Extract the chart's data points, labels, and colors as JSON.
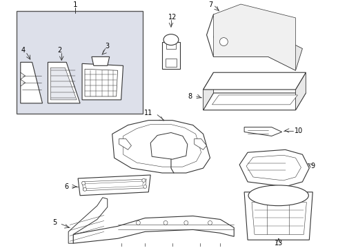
{
  "background_color": "#ffffff",
  "line_color": "#333333",
  "label_color": "#000000",
  "box_bg": "#e8eaf0",
  "figsize": [
    4.9,
    3.6
  ],
  "dpi": 100
}
